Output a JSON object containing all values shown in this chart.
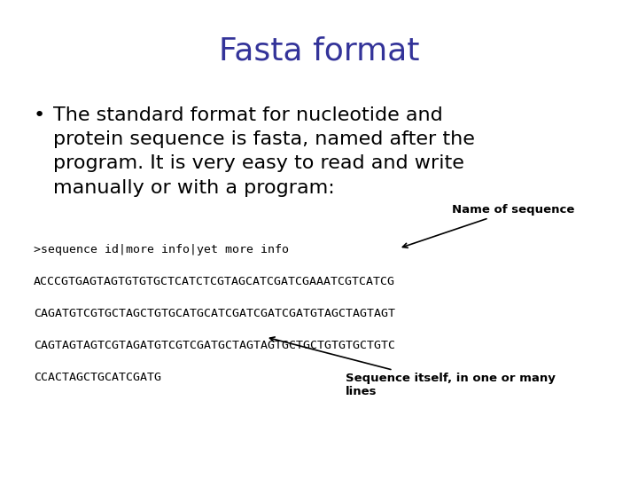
{
  "title": "Fasta format",
  "title_color": "#333399",
  "title_fontsize": 26,
  "background_color": "#ffffff",
  "bullet_text": "The standard format for nucleotide and\nprotein sequence is fasta, named after the\nprogram. It is very easy to read and write\nmanually or with a program:",
  "bullet_fontsize": 16,
  "bullet_color": "#000000",
  "code_line1": ">sequence id|more info|yet more info",
  "code_line2": "ACCCGTGAGTAGTGTGTGCTCATCTCGTAGCATCGATCGAAATCGTCATCG",
  "code_line3": "CAGATGTCGTGCTAGCTGTGCATGCATCGATCGATCGATGTAGCTAGTAGT",
  "code_line4": "CAGTAGTAGTCGTAGATGTCGTCGATGCTAGTAGTGCTGCTGTGTGCTGTC",
  "code_line5": "CCACTAGCTGCATCGATG",
  "code_fontsize": 9.5,
  "code_color": "#000000",
  "annotation1_text": "Name of sequence",
  "annotation2_text": "Sequence itself, in one or many\nlines",
  "annotation_fontsize": 9.5,
  "annotation_color": "#000000"
}
